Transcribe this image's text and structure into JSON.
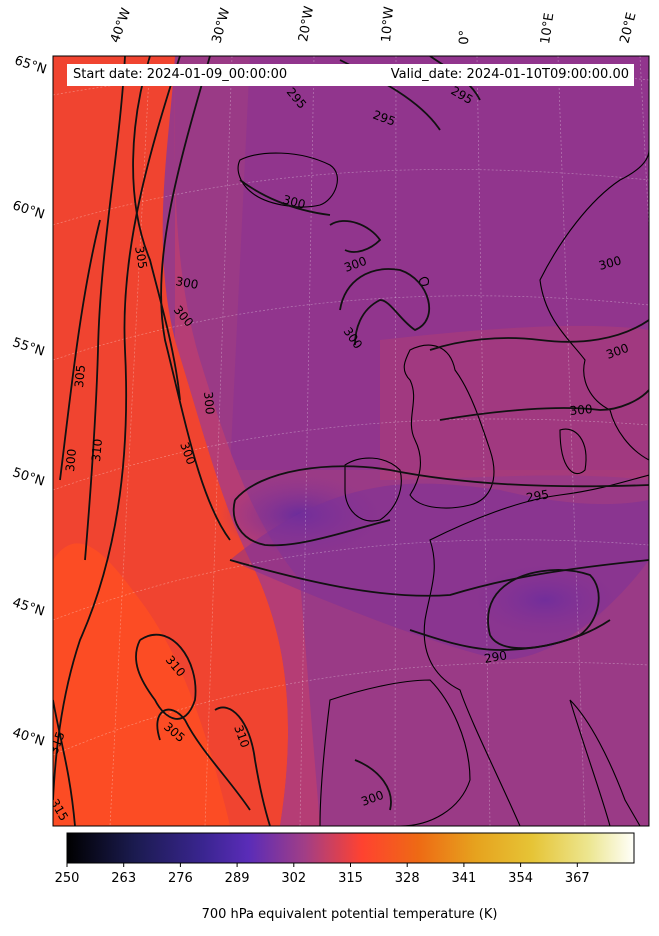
{
  "header": {
    "start_date": "Start date: 2024-01-09_00:00:00",
    "valid_date": "Valid_date: 2024-01-10T09:00:00.00"
  },
  "longitude_labels": [
    "40°W",
    "30°W",
    "20°W",
    "10°W",
    "0°",
    "10°E",
    "20°E"
  ],
  "latitude_labels": [
    "65°N",
    "60°N",
    "55°N",
    "50°N",
    "45°N",
    "40°N"
  ],
  "contour_labels": {
    "c290": "290",
    "c295": "295",
    "c300": "300",
    "c305": "305",
    "c310": "310",
    "c315": "315"
  },
  "colorbar": {
    "ticks": [
      "250",
      "263",
      "276",
      "289",
      "302",
      "315",
      "328",
      "341",
      "354",
      "367"
    ],
    "label": "700 hPa equivalent potential temperature (K)",
    "colormap": "CMRmap-like: black → indigo → violet → red → orange → yellow → white"
  },
  "colors": {
    "warm_plume": "#ff4a2a",
    "background": "#a23e82",
    "cold_pool": "#6a2c9c",
    "contour": "#111111"
  }
}
